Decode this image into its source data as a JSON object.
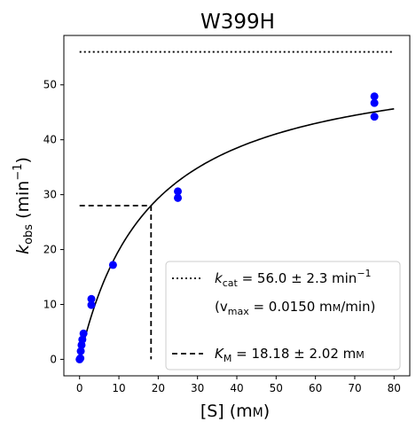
{
  "chart_data": {
    "type": "scatter",
    "title": "W399H",
    "xlabel": {
      "main": "[S] (m",
      "unit_small": "M",
      "close": ")"
    },
    "ylabel": {
      "k": "k",
      "sub": "obs",
      "paren": " (min",
      "sup": "−1",
      "close": ")"
    },
    "xlim": [
      -4,
      84
    ],
    "ylim": [
      -3,
      59
    ],
    "xticks": [
      0,
      10,
      20,
      30,
      40,
      50,
      60,
      70,
      80
    ],
    "yticks": [
      0,
      10,
      20,
      30,
      40,
      50
    ],
    "grid": false,
    "legend_position": "lower-right",
    "colors": {
      "points": "#0000ff",
      "curve": "#000000",
      "lines": "#000000"
    },
    "points": {
      "x": [
        0,
        0.2,
        0.3,
        0.5,
        0.7,
        1,
        3,
        3,
        8.5,
        25,
        25,
        75,
        75,
        75
      ],
      "y": [
        0,
        0.2,
        1.5,
        2.6,
        3.6,
        4.7,
        9.9,
        11.0,
        17.2,
        29.4,
        30.6,
        47.9,
        46.7,
        44.2
      ]
    },
    "fit": {
      "model": "michaelis-menten",
      "kcat": 56.0,
      "km": 18.18,
      "x_range": [
        0,
        80
      ]
    },
    "kcat_line": {
      "y": 56.0,
      "x_range": [
        0,
        80
      ],
      "style": "dotted"
    },
    "km_line": {
      "x": 18.18,
      "y": 28.0,
      "x_start": 0,
      "style": "dashed"
    },
    "legend": {
      "kcat": {
        "k": "k",
        "sub": "cat",
        "text": " = 56.0 ± 2.3 min",
        "sup": "−1"
      },
      "vmax": {
        "open": "(v",
        "sub": "max",
        "text": " = 0.0150 m",
        "unit_small": "M",
        "close": "/min)"
      },
      "km": {
        "k": "K",
        "sub": "M",
        "text": " = 18.18 ± 2.02 m",
        "unit_small": "M"
      }
    }
  }
}
